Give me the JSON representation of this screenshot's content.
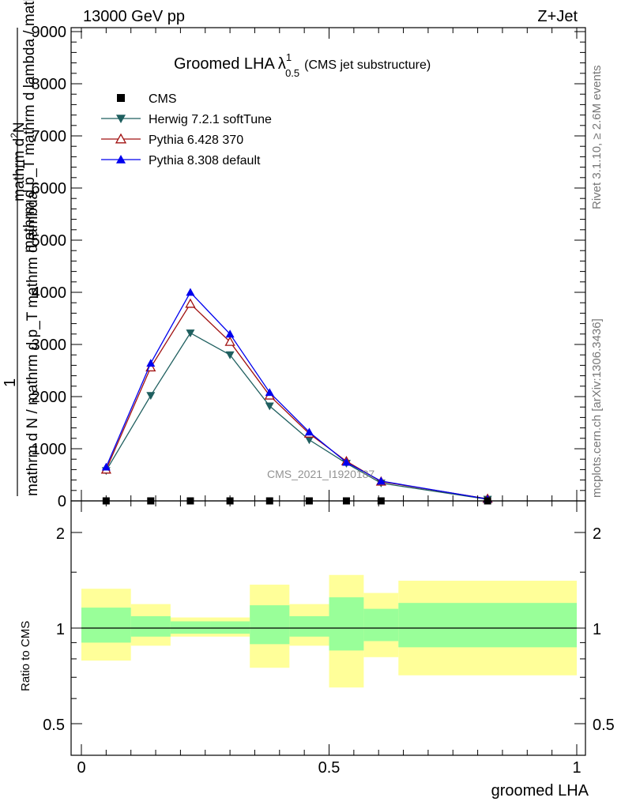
{
  "header": {
    "left": "13000 GeV pp",
    "right": "Z+Jet"
  },
  "side_text": {
    "rivet": "Rivet 3.1.10, ≥ 2.6M events",
    "mcplots": "mcplots.cern.ch [arXiv:1306.3436]"
  },
  "watermark": "CMS_2021_I1920187",
  "chart_data": [
    {
      "type": "line",
      "title_main": "Groomed LHA",
      "title_symbol": "λ",
      "title_sup": "1",
      "title_sub": "0.5",
      "title_note": "(CMS jet substructure)",
      "xlabel": "",
      "ylabel_num": "1",
      "ylabel_line1": "mathrm d",
      "ylabel_sup": "2",
      "ylabel_line1b": "N",
      "ylabel_line2": "mathrm d N / mathrm d p_T mathrm d lambda",
      "ylabel_overlay": "mathrm d p_T mathrm d lambda / mathrm d N",
      "xlim": [
        0,
        1
      ],
      "ylim": [
        0,
        9000
      ],
      "yticks": [
        0,
        1000,
        2000,
        3000,
        4000,
        5000,
        6000,
        7000,
        8000,
        9000
      ],
      "ytick_labels": [
        "0",
        "1000",
        "2000",
        "3000",
        "4000",
        "5000",
        "6000",
        "7000",
        "8000",
        "9000"
      ],
      "x": [
        0.05,
        0.14,
        0.22,
        0.3,
        0.38,
        0.46,
        0.535,
        0.605,
        0.82
      ],
      "series": [
        {
          "name": "CMS",
          "color": "#000000",
          "marker": "square",
          "values": [
            0,
            0,
            0,
            0,
            0,
            0,
            0,
            0,
            0
          ]
        },
        {
          "name": "Herwig 7.2.1 softTune",
          "color": "#1f5f5f",
          "marker": "triangle-down",
          "values": [
            580,
            2020,
            3220,
            2800,
            1820,
            1170,
            720,
            340,
            30
          ]
        },
        {
          "name": "Pythia 6.428 370",
          "color": "#a01010",
          "marker": "triangle-up-open",
          "values": [
            600,
            2560,
            3780,
            3050,
            2020,
            1290,
            760,
            370,
            40
          ]
        },
        {
          "name": "Pythia 8.308 default",
          "color": "#0000ee",
          "marker": "triangle-up",
          "values": [
            650,
            2640,
            4000,
            3200,
            2080,
            1320,
            740,
            380,
            35
          ]
        }
      ],
      "legend_position": "top-left"
    },
    {
      "type": "area",
      "ylabel": "Ratio to CMS",
      "xlabel": "groomed LHA",
      "xlim": [
        0,
        1
      ],
      "ylim": [
        0.4,
        2.3
      ],
      "xtick_labels": [
        "0",
        "0.5",
        "1"
      ],
      "xticks": [
        0,
        0.5,
        1
      ],
      "ytick_labels": [
        "0.5",
        "1",
        "2"
      ],
      "yticks": [
        0.5,
        1,
        2
      ],
      "bins": [
        {
          "x0": 0.0,
          "x1": 0.1,
          "green": [
            0.9,
            1.16
          ],
          "yellow": [
            0.79,
            1.33
          ]
        },
        {
          "x0": 0.1,
          "x1": 0.18,
          "green": [
            0.94,
            1.09
          ],
          "yellow": [
            0.88,
            1.19
          ]
        },
        {
          "x0": 0.18,
          "x1": 0.26,
          "green": [
            0.96,
            1.05
          ],
          "yellow": [
            0.94,
            1.08
          ]
        },
        {
          "x0": 0.26,
          "x1": 0.34,
          "green": [
            0.96,
            1.05
          ],
          "yellow": [
            0.94,
            1.08
          ]
        },
        {
          "x0": 0.34,
          "x1": 0.42,
          "green": [
            0.89,
            1.18
          ],
          "yellow": [
            0.75,
            1.37
          ]
        },
        {
          "x0": 0.42,
          "x1": 0.5,
          "green": [
            0.94,
            1.09
          ],
          "yellow": [
            0.88,
            1.19
          ]
        },
        {
          "x0": 0.5,
          "x1": 0.57,
          "green": [
            0.85,
            1.25
          ],
          "yellow": [
            0.65,
            1.47
          ]
        },
        {
          "x0": 0.57,
          "x1": 0.64,
          "green": [
            0.91,
            1.15
          ],
          "yellow": [
            0.81,
            1.29
          ]
        },
        {
          "x0": 0.64,
          "x1": 1.0,
          "green": [
            0.87,
            1.2
          ],
          "yellow": [
            0.71,
            1.41
          ]
        }
      ],
      "reference": 1
    }
  ]
}
